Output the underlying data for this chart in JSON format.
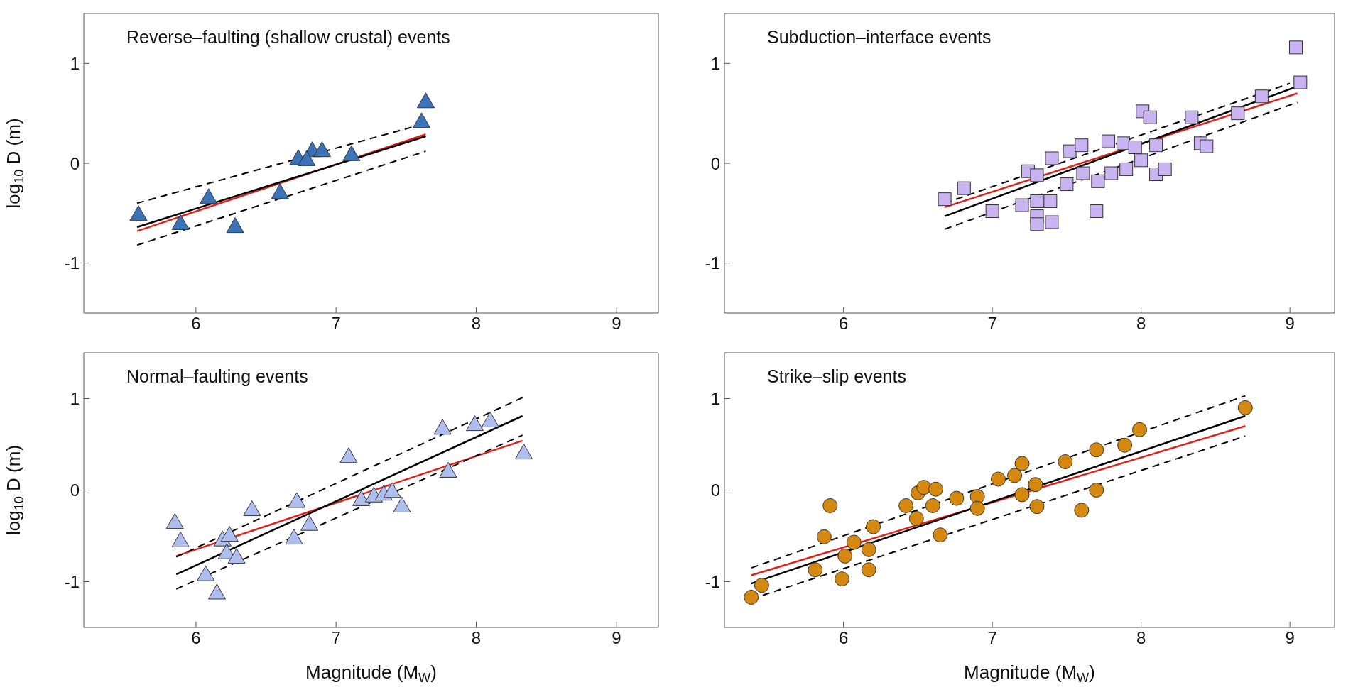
{
  "chart_data": [
    {
      "type": "scatter",
      "title": "Reverse–faulting (shallow crustal) events",
      "ylabel": "log$_{10}$ D (m)",
      "xlim": [
        5.2,
        9.3
      ],
      "xticks": [
        6,
        7,
        8,
        9
      ],
      "ylim": [
        -1.5,
        1.5
      ],
      "yticks": [
        -1,
        0,
        1
      ],
      "series": [
        {
          "marker": "triangle",
          "color": "#3b73b9",
          "x": [
            5.59,
            5.89,
            6.09,
            6.28,
            6.6,
            6.73,
            6.83,
            6.9,
            6.79,
            7.11,
            7.61,
            7.64
          ],
          "values": [
            -0.51,
            -0.6,
            -0.34,
            -0.63,
            -0.29,
            0.05,
            0.13,
            0.13,
            0.04,
            0.09,
            0.42,
            0.62
          ]
        },
        {
          "type": "line",
          "color": "#e0201b",
          "x": [
            5.58,
            7.64
          ],
          "values": [
            -0.68,
            0.29
          ]
        },
        {
          "type": "line",
          "color": "#000000",
          "x": [
            5.58,
            7.64
          ],
          "values": [
            -0.64,
            0.27
          ]
        },
        {
          "type": "line",
          "color": "#000000",
          "line_style": "dashed",
          "x": [
            5.58,
            7.64
          ],
          "values": [
            -0.4,
            0.4
          ]
        },
        {
          "type": "line",
          "color": "#000000",
          "line_style": "dashed",
          "x": [
            5.58,
            7.64
          ],
          "values": [
            -0.82,
            0.12
          ]
        }
      ]
    },
    {
      "type": "scatter",
      "title": "Subduction–interface events",
      "xlim": [
        5.2,
        9.3
      ],
      "xticks": [
        6,
        7,
        8,
        9
      ],
      "ylim": [
        -1.5,
        1.5
      ],
      "yticks": [
        -1,
        0,
        1
      ],
      "series": [
        {
          "marker": "square",
          "color": "#c9b3f0",
          "x": [
            6.68,
            6.81,
            7.0,
            7.2,
            7.24,
            7.3,
            7.3,
            7.3,
            7.3,
            7.39,
            7.4,
            7.4,
            7.5,
            7.52,
            7.6,
            7.61,
            7.71,
            7.7,
            7.78,
            7.8,
            7.88,
            7.9,
            7.96,
            8.0,
            8.01,
            8.06,
            8.1,
            8.1,
            8.16,
            8.34,
            8.4,
            8.44,
            8.65,
            8.81,
            9.04,
            9.07
          ],
          "values": [
            -0.36,
            -0.25,
            -0.48,
            -0.42,
            -0.08,
            -0.12,
            -0.38,
            -0.53,
            -0.61,
            -0.38,
            -0.59,
            0.05,
            -0.21,
            0.12,
            0.18,
            -0.1,
            -0.18,
            -0.48,
            0.22,
            -0.1,
            0.2,
            -0.06,
            0.16,
            0.03,
            0.52,
            0.46,
            0.18,
            -0.11,
            -0.06,
            0.46,
            0.2,
            0.17,
            0.5,
            0.67,
            1.16,
            0.81
          ]
        },
        {
          "type": "line",
          "color": "#e0201b",
          "x": [
            6.68,
            9.05
          ],
          "values": [
            -0.44,
            0.7
          ]
        },
        {
          "type": "line",
          "color": "#000000",
          "x": [
            6.68,
            9.05
          ],
          "values": [
            -0.53,
            0.77
          ]
        },
        {
          "type": "line",
          "color": "#000000",
          "line_style": "dashed",
          "x": [
            6.68,
            9.0
          ],
          "values": [
            -0.4,
            0.8
          ]
        },
        {
          "type": "line",
          "color": "#000000",
          "line_style": "dashed",
          "x": [
            6.68,
            9.05
          ],
          "values": [
            -0.66,
            0.61
          ]
        }
      ]
    },
    {
      "type": "scatter",
      "title": "Normal–faulting events",
      "ylabel": "log$_{10}$ D (m)",
      "xlabel": "Magnitude (M$_{W}$)",
      "xlim": [
        5.2,
        9.3
      ],
      "xticks": [
        6,
        7,
        8,
        9
      ],
      "ylim": [
        -1.5,
        1.5
      ],
      "yticks": [
        -1,
        0,
        1
      ],
      "series": [
        {
          "marker": "triangle",
          "color": "#aebfef",
          "x": [
            5.85,
            5.89,
            6.07,
            6.15,
            6.19,
            6.24,
            6.22,
            6.29,
            6.4,
            6.72,
            6.7,
            6.81,
            7.09,
            7.18,
            7.27,
            7.34,
            7.4,
            7.47,
            7.76,
            7.8,
            7.99,
            8.1,
            8.34
          ],
          "values": [
            -0.35,
            -0.55,
            -0.92,
            -1.12,
            -0.54,
            -0.49,
            -0.68,
            -0.73,
            -0.21,
            -0.12,
            -0.52,
            -0.37,
            0.37,
            -0.1,
            -0.06,
            -0.04,
            -0.01,
            -0.17,
            0.68,
            0.21,
            0.72,
            0.76,
            0.41
          ]
        },
        {
          "type": "line",
          "color": "#e0201b",
          "x": [
            5.86,
            8.33
          ],
          "values": [
            -0.72,
            0.54
          ]
        },
        {
          "type": "line",
          "color": "#000000",
          "x": [
            5.86,
            8.33
          ],
          "values": [
            -0.92,
            0.81
          ]
        },
        {
          "type": "line",
          "color": "#000000",
          "line_style": "dashed",
          "x": [
            5.86,
            8.33
          ],
          "values": [
            -0.73,
            1.01
          ]
        },
        {
          "type": "line",
          "color": "#000000",
          "line_style": "dashed",
          "x": [
            5.86,
            8.33
          ],
          "values": [
            -1.08,
            0.6
          ]
        }
      ]
    },
    {
      "type": "scatter",
      "title": "Strike–slip events",
      "xlabel": "Magnitude (M$_{W}$)",
      "xlim": [
        5.2,
        9.3
      ],
      "xticks": [
        6,
        7,
        8,
        9
      ],
      "ylim": [
        -1.5,
        1.5
      ],
      "yticks": [
        -1,
        0,
        1
      ],
      "series": [
        {
          "marker": "circle",
          "color": "#d4880f",
          "x": [
            5.38,
            5.45,
            5.81,
            5.87,
            5.91,
            5.99,
            6.01,
            6.07,
            6.17,
            6.17,
            6.2,
            6.42,
            6.49,
            6.5,
            6.54,
            6.62,
            6.6,
            6.65,
            6.76,
            6.9,
            6.9,
            7.04,
            7.15,
            7.2,
            7.2,
            7.29,
            7.3,
            7.49,
            7.6,
            7.7,
            7.7,
            7.89,
            7.99,
            8.7
          ],
          "values": [
            -1.17,
            -1.04,
            -0.87,
            -0.51,
            -0.17,
            -0.97,
            -0.72,
            -0.57,
            -0.65,
            -0.87,
            -0.4,
            -0.17,
            -0.31,
            -0.03,
            0.03,
            0.01,
            -0.17,
            -0.49,
            -0.09,
            -0.07,
            -0.2,
            0.12,
            0.16,
            0.29,
            -0.05,
            0.06,
            -0.18,
            0.31,
            -0.22,
            0.44,
            0.0,
            0.49,
            0.66,
            0.9
          ]
        },
        {
          "type": "line",
          "color": "#e0201b",
          "x": [
            5.38,
            8.7
          ],
          "values": [
            -0.93,
            0.7
          ]
        },
        {
          "type": "line",
          "color": "#000000",
          "x": [
            5.38,
            8.7
          ],
          "values": [
            -1.02,
            0.81
          ]
        },
        {
          "type": "line",
          "color": "#000000",
          "line_style": "dashed",
          "x": [
            5.38,
            8.7
          ],
          "values": [
            -0.85,
            1.03
          ]
        },
        {
          "type": "line",
          "color": "#000000",
          "line_style": "dashed",
          "x": [
            5.38,
            8.7
          ],
          "values": [
            -1.19,
            0.59
          ]
        }
      ]
    }
  ]
}
